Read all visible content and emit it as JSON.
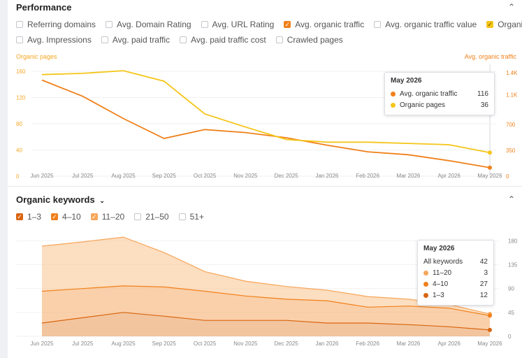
{
  "performance": {
    "title": "Performance",
    "checkboxes_row1": [
      {
        "label": "Referring domains",
        "checked": false
      },
      {
        "label": "Avg. Domain Rating",
        "checked": false
      },
      {
        "label": "Avg. URL Rating",
        "checked": false
      },
      {
        "label": "Avg. organic traffic",
        "checked": true,
        "color": "#f0801a"
      },
      {
        "label": "Avg. organic traffic value",
        "checked": false
      },
      {
        "label": "Organic pages",
        "checked": true,
        "color": "#f5c518"
      }
    ],
    "checkboxes_row2": [
      {
        "label": "Avg. Impressions",
        "checked": false
      },
      {
        "label": "Avg. paid traffic",
        "checked": false
      },
      {
        "label": "Avg. paid traffic cost",
        "checked": false
      },
      {
        "label": "Crawled pages",
        "checked": false
      }
    ],
    "left_axis_title": "Organic pages",
    "right_axis_title": "Avg. organic traffic",
    "left_ticks": [
      "160",
      "120",
      "80",
      "40",
      "0"
    ],
    "right_ticks": [
      "1.4K",
      "1.1K",
      "700",
      "350",
      "0"
    ],
    "tooltip": {
      "title": "May 2026",
      "rows": [
        {
          "label": "Avg. organic traffic",
          "value": "116",
          "color": "#f0801a"
        },
        {
          "label": "Organic pages",
          "value": "36",
          "color": "#f5c518"
        }
      ]
    }
  },
  "keywords": {
    "title": "Organic keywords",
    "chevron": "chevron-down-icon",
    "checkboxes": [
      {
        "label": "1–3",
        "checked": true,
        "color": "#d9650f"
      },
      {
        "label": "4–10",
        "checked": true,
        "color": "#f0801a"
      },
      {
        "label": "11–20",
        "checked": true,
        "color": "#f7a65a"
      },
      {
        "label": "21–50",
        "checked": false
      },
      {
        "label": "51+",
        "checked": false
      }
    ],
    "right_ticks": [
      "180",
      "135",
      "90",
      "45",
      "0"
    ],
    "tooltip": {
      "title": "May 2026",
      "total_label": "All keywords",
      "total_value": "42",
      "rows": [
        {
          "label": "11–20",
          "value": "3",
          "color": "#f7a65a"
        },
        {
          "label": "4–10",
          "value": "27",
          "color": "#f0801a"
        },
        {
          "label": "1–3",
          "value": "12",
          "color": "#d9650f"
        }
      ]
    }
  },
  "chart_data": [
    {
      "type": "line",
      "x": [
        "Jun 2025",
        "Jul 2025",
        "Aug 2025",
        "Sep 2025",
        "Oct 2025",
        "Nov 2025",
        "Dec 2025",
        "Jan 2026",
        "Feb 2026",
        "Mar 2026",
        "Apr 2026",
        "May 2026"
      ],
      "ylim_left": [
        0,
        175
      ],
      "ylim_right": [
        0,
        1550
      ],
      "series": [
        {
          "name": "Avg. organic traffic",
          "axis": "right",
          "color": "#f0801a",
          "values": [
            1300,
            1080,
            780,
            510,
            630,
            590,
            520,
            420,
            330,
            290,
            210,
            116
          ]
        },
        {
          "name": "Organic pages",
          "axis": "left",
          "color": "#f5c518",
          "values": [
            155,
            157,
            161,
            145,
            95,
            75,
            56,
            52,
            52,
            50,
            48,
            36
          ]
        }
      ]
    },
    {
      "type": "area",
      "x": [
        "Jun 2025",
        "Jul 2025",
        "Aug 2025",
        "Sep 2025",
        "Oct 2025",
        "Nov 2025",
        "Dec 2025",
        "Jan 2026",
        "Feb 2026",
        "Mar 2026",
        "Apr 2026",
        "May 2026"
      ],
      "ylim": [
        0,
        195
      ],
      "stacked": true,
      "series": [
        {
          "name": "1–3",
          "color": "#d9650f",
          "values": [
            25,
            35,
            45,
            38,
            30,
            30,
            30,
            25,
            25,
            22,
            18,
            12
          ]
        },
        {
          "name": "4–10",
          "color": "#f0801a",
          "values": [
            60,
            55,
            50,
            55,
            55,
            46,
            40,
            42,
            30,
            35,
            35,
            27
          ]
        },
        {
          "name": "11–20",
          "color": "#f7a65a",
          "values": [
            85,
            88,
            92,
            65,
            37,
            28,
            24,
            20,
            20,
            13,
            7,
            3
          ]
        }
      ]
    }
  ]
}
